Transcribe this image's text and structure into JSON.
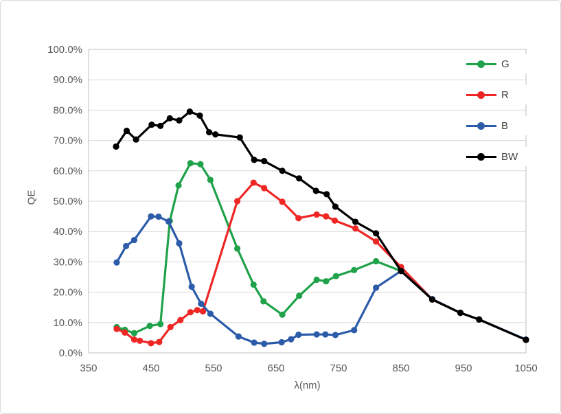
{
  "colors": {
    "tick_label": "#595959",
    "gridline": "#d9d9d9",
    "plot_border": "#bfbfbf",
    "legend_text": "#404040",
    "background": "#ffffff"
  },
  "chart_data": {
    "type": "line",
    "title": "",
    "xlabel": "λ(nm)",
    "ylabel": "QE",
    "xlim": [
      350,
      1050
    ],
    "ylim": [
      0,
      100
    ],
    "x_ticks": [
      "350",
      "450",
      "550",
      "650",
      "750",
      "850",
      "950",
      "1050"
    ],
    "y_ticks": [
      "0.0%",
      "10.0%",
      "20.0%",
      "30.0%",
      "40.0%",
      "50.0%",
      "60.0%",
      "70.0%",
      "80.0%",
      "90.0%",
      "100.0%"
    ],
    "grid": "horizontal-only",
    "legend_position": "inside-top-right",
    "marker": "circle",
    "series": [
      {
        "name": "G",
        "color": "#1fa24a",
        "x": [
          395,
          408,
          423,
          448,
          465,
          480,
          494,
          513,
          529,
          545,
          588,
          614,
          630,
          660,
          687,
          715,
          730,
          746,
          775,
          810,
          850,
          900,
          945,
          975,
          1050
        ],
        "y": [
          8.5,
          7.6,
          6.5,
          8.9,
          9.5,
          43.5,
          55.2,
          62.5,
          62.2,
          57.0,
          34.4,
          22.5,
          17.0,
          12.6,
          18.8,
          24.1,
          23.6,
          25.3,
          27.3,
          30.2,
          27.0,
          17.6,
          13.2,
          11.0,
          4.3
        ]
      },
      {
        "name": "R",
        "color": "#ee2624",
        "x": [
          395,
          408,
          423,
          432,
          450,
          463,
          481,
          497,
          513,
          524,
          533,
          588,
          614,
          631,
          660,
          686,
          715,
          730,
          744,
          777,
          810,
          850,
          900,
          945,
          975,
          1050
        ],
        "y": [
          7.9,
          6.7,
          4.4,
          4.0,
          3.2,
          3.6,
          8.5,
          10.8,
          13.4,
          14.1,
          13.7,
          50.0,
          56.1,
          54.3,
          49.8,
          44.4,
          45.6,
          45.0,
          43.6,
          41.0,
          36.7,
          28.3,
          17.6,
          13.2,
          11.0,
          4.3
        ]
      },
      {
        "name": "B",
        "color": "#2b5ba9",
        "x": [
          395,
          410,
          423,
          450,
          462,
          478,
          495,
          515,
          530,
          545,
          590,
          615,
          631,
          659,
          674,
          686,
          715,
          729,
          745,
          775,
          810,
          850,
          900,
          945,
          975,
          1050
        ],
        "y": [
          29.8,
          35.2,
          37.2,
          45.0,
          44.9,
          43.3,
          36.1,
          21.8,
          16.2,
          12.9,
          5.4,
          3.4,
          3.0,
          3.5,
          4.5,
          6.0,
          6.1,
          6.1,
          5.9,
          7.5,
          21.5,
          27.0,
          17.7,
          13.2,
          11.0,
          4.4
        ]
      },
      {
        "name": "BW",
        "color": "#000000",
        "x": [
          394,
          411,
          426,
          451,
          465,
          480,
          495,
          512,
          528,
          543,
          553,
          592,
          615,
          631,
          660,
          687,
          714,
          731,
          745,
          777,
          810,
          850,
          900,
          945,
          975,
          1050
        ],
        "y": [
          68.0,
          73.2,
          70.3,
          75.2,
          74.8,
          77.3,
          76.6,
          79.5,
          78.2,
          72.7,
          72.0,
          71.0,
          63.6,
          63.2,
          60.0,
          57.5,
          53.4,
          52.3,
          48.2,
          43.2,
          39.4,
          27.0,
          17.6,
          13.2,
          11.0,
          4.3
        ]
      }
    ]
  }
}
